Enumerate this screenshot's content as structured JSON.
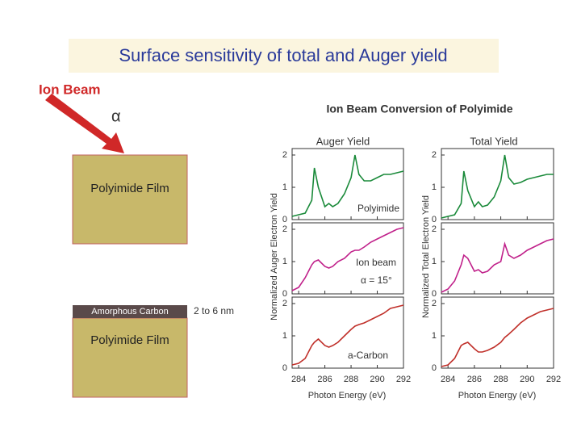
{
  "slide_title": "Surface sensitivity of total and Auger yield",
  "diagram": {
    "ion_beam": "Ion Beam",
    "alpha": "α",
    "film_top": "Polyimide Film",
    "amorphous": "Amorphous Carbon",
    "thickness": "2 to 6 nm",
    "film_bottom": "Polyimide Film"
  },
  "figure": {
    "title": "Ion Beam Conversion of Polyimide",
    "columns": [
      "Auger Yield",
      "Total Yield"
    ],
    "ylabels": [
      "Normalized Auger Electron Yield",
      "Normalized Total Electron Yield"
    ],
    "xlabel": "Photon Energy (eV)"
  },
  "chart_data": [
    {
      "type": "line",
      "color": "#1a8a3a",
      "annotations": [
        "Polyimide"
      ],
      "x": [
        283.5,
        284,
        284.5,
        285,
        285.2,
        285.5,
        286,
        286.3,
        286.6,
        287,
        287.5,
        288,
        288.3,
        288.6,
        289,
        289.5,
        290,
        290.5,
        291,
        291.5,
        292
      ],
      "values": [
        0.1,
        0.15,
        0.2,
        0.6,
        1.6,
        1.0,
        0.4,
        0.5,
        0.4,
        0.5,
        0.8,
        1.3,
        2.0,
        1.4,
        1.2,
        1.2,
        1.3,
        1.4,
        1.4,
        1.45,
        1.5
      ],
      "xlim": [
        283.5,
        292
      ],
      "ylim": [
        0,
        2.2
      ],
      "yticks": [
        0,
        1,
        2
      ]
    },
    {
      "type": "line",
      "color": "#c0208a",
      "annotations": [
        "Ion beam",
        "α = 15°"
      ],
      "x": [
        283.5,
        284,
        284.5,
        285,
        285.2,
        285.5,
        286,
        286.3,
        286.6,
        287,
        287.5,
        288,
        288.3,
        288.6,
        289,
        289.5,
        290,
        290.5,
        291,
        291.5,
        292
      ],
      "values": [
        0.1,
        0.2,
        0.5,
        0.9,
        1.0,
        1.05,
        0.85,
        0.8,
        0.85,
        1.0,
        1.1,
        1.3,
        1.35,
        1.35,
        1.45,
        1.6,
        1.7,
        1.8,
        1.9,
        2.0,
        2.05
      ],
      "xlim": [
        283.5,
        292
      ],
      "ylim": [
        0,
        2.2
      ],
      "yticks": [
        0,
        1,
        2
      ]
    },
    {
      "type": "line",
      "color": "#c0302a",
      "annotations": [
        "a-Carbon"
      ],
      "x": [
        283.5,
        284,
        284.5,
        285,
        285.2,
        285.5,
        286,
        286.3,
        286.6,
        287,
        287.5,
        288,
        288.3,
        288.6,
        289,
        289.5,
        290,
        290.5,
        291,
        291.5,
        292
      ],
      "values": [
        0.1,
        0.15,
        0.3,
        0.7,
        0.8,
        0.9,
        0.7,
        0.65,
        0.7,
        0.8,
        1.0,
        1.2,
        1.3,
        1.35,
        1.4,
        1.5,
        1.6,
        1.7,
        1.85,
        1.9,
        1.95
      ],
      "xlim": [
        283.5,
        292
      ],
      "xticks": [
        284,
        286,
        288,
        290,
        292
      ],
      "ylim": [
        0,
        2.2
      ],
      "yticks": [
        0,
        1,
        2
      ]
    },
    {
      "type": "line",
      "color": "#1a8a3a",
      "x": [
        283.5,
        284,
        284.5,
        285,
        285.2,
        285.5,
        286,
        286.3,
        286.6,
        287,
        287.5,
        288,
        288.3,
        288.6,
        289,
        289.5,
        290,
        290.5,
        291,
        291.5,
        292
      ],
      "values": [
        0.05,
        0.1,
        0.15,
        0.5,
        1.5,
        0.9,
        0.4,
        0.55,
        0.4,
        0.45,
        0.7,
        1.2,
        2.0,
        1.3,
        1.1,
        1.15,
        1.25,
        1.3,
        1.35,
        1.4,
        1.4
      ],
      "xlim": [
        283.5,
        292
      ],
      "ylim": [
        0,
        2.2
      ],
      "yticks": [
        0,
        1,
        2
      ]
    },
    {
      "type": "line",
      "color": "#c0208a",
      "x": [
        283.5,
        284,
        284.5,
        285,
        285.2,
        285.5,
        286,
        286.3,
        286.6,
        287,
        287.5,
        288,
        288.3,
        288.6,
        289,
        289.5,
        290,
        290.5,
        291,
        291.5,
        292
      ],
      "values": [
        0.05,
        0.15,
        0.4,
        0.9,
        1.2,
        1.1,
        0.7,
        0.75,
        0.65,
        0.7,
        0.9,
        1.0,
        1.55,
        1.2,
        1.1,
        1.2,
        1.35,
        1.45,
        1.55,
        1.65,
        1.7
      ],
      "xlim": [
        283.5,
        292
      ],
      "ylim": [
        0,
        2.2
      ],
      "yticks": [
        0,
        1,
        2
      ]
    },
    {
      "type": "line",
      "color": "#c0302a",
      "x": [
        283.5,
        284,
        284.5,
        285,
        285.2,
        285.5,
        286,
        286.3,
        286.6,
        287,
        287.5,
        288,
        288.3,
        288.6,
        289,
        289.5,
        290,
        290.5,
        291,
        291.5,
        292
      ],
      "values": [
        0.05,
        0.1,
        0.3,
        0.7,
        0.75,
        0.8,
        0.6,
        0.5,
        0.5,
        0.55,
        0.65,
        0.8,
        0.95,
        1.05,
        1.2,
        1.4,
        1.55,
        1.65,
        1.75,
        1.8,
        1.85
      ],
      "xlim": [
        283.5,
        292
      ],
      "xticks": [
        284,
        286,
        288,
        290,
        292
      ],
      "ylim": [
        0,
        2.2
      ],
      "yticks": [
        0,
        1,
        2
      ]
    }
  ]
}
